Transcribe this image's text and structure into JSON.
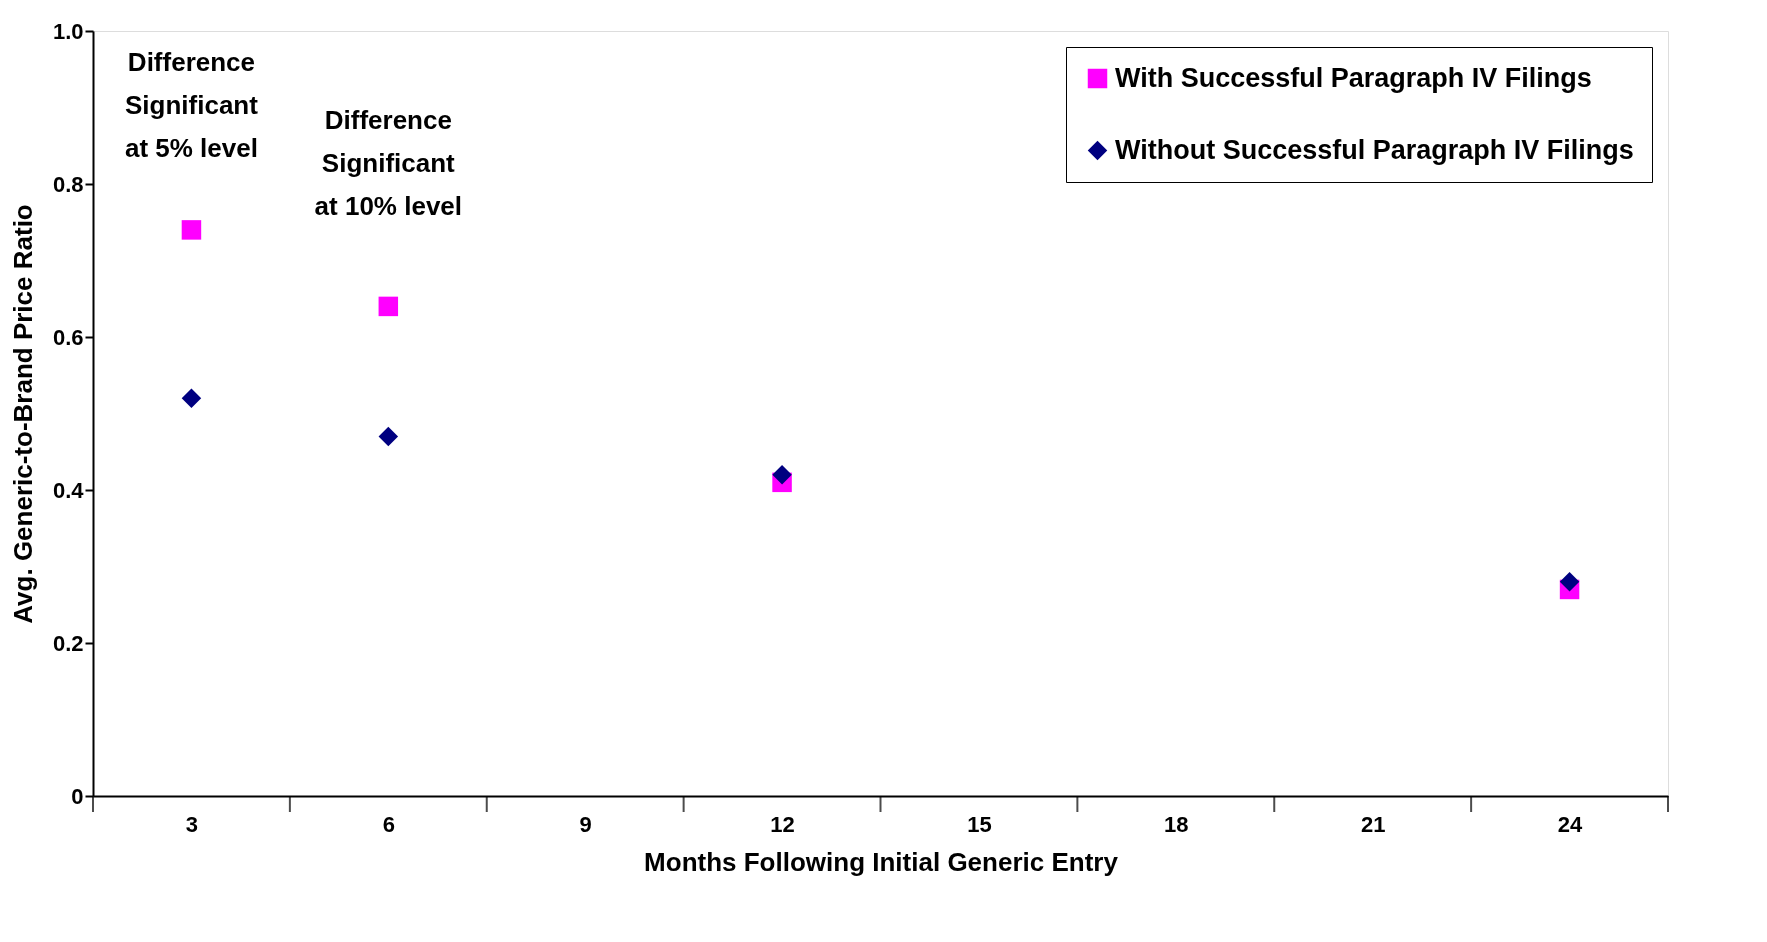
{
  "chart_data": {
    "type": "scatter",
    "xlabel": "Months Following Initial Generic Entry",
    "ylabel": "Avg. Generic-to-Brand Price Ratio",
    "categories": [
      "3",
      "6",
      "9",
      "12",
      "15",
      "18",
      "21",
      "24"
    ],
    "series": [
      {
        "name": "With Successful Paragraph IV Filings",
        "color": "#ff00ff",
        "marker": "square",
        "values": [
          0.74,
          0.64,
          null,
          0.41,
          null,
          null,
          null,
          0.27
        ]
      },
      {
        "name": "Without Successful Paragraph IV Filings",
        "color": "#000080",
        "marker": "diamond",
        "values": [
          0.52,
          0.47,
          null,
          0.42,
          null,
          null,
          null,
          0.28
        ]
      }
    ],
    "ylim": [
      0,
      1
    ],
    "yticks": [
      0,
      0.2,
      0.4,
      0.6,
      0.8,
      {
        "value": 1,
        "label": "1.0"
      }
    ],
    "annotations": [
      "Difference\nSignificant\nat 5% level",
      "Difference\nSignificant\nat 10% level"
    ],
    "grid": false,
    "legend": "top right"
  }
}
